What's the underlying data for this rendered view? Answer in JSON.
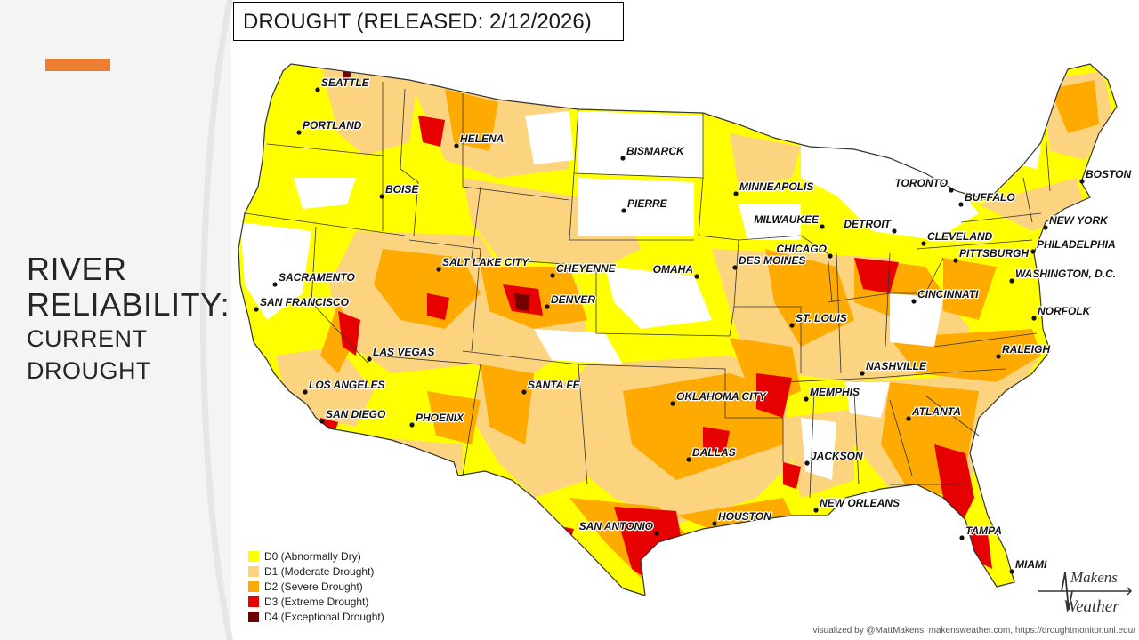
{
  "slide": {
    "title_line1": "RIVER",
    "title_line2": "RELIABILITY:",
    "subtitle_line1": "CURRENT",
    "subtitle_line2": "DROUGHT",
    "accent_color": "#ed7d31"
  },
  "map": {
    "title": "DROUGHT (RELEASED: 2/12/2026)",
    "cities": [
      {
        "name": "SEATTLE"
      },
      {
        "name": "PORTLAND"
      },
      {
        "name": "HELENA"
      },
      {
        "name": "BOISE"
      },
      {
        "name": "BISMARCK"
      },
      {
        "name": "PIERRE"
      },
      {
        "name": "MINNEAPOLIS"
      },
      {
        "name": "MILWAUKEE"
      },
      {
        "name": "DETROIT"
      },
      {
        "name": "TORONTO"
      },
      {
        "name": "BUFFALO"
      },
      {
        "name": "BOSTON"
      },
      {
        "name": "NEW YORK"
      },
      {
        "name": "PHILADELPHIA"
      },
      {
        "name": "WASHINGTON,  D.C."
      },
      {
        "name": "NORFOLK"
      },
      {
        "name": "CLEVELAND"
      },
      {
        "name": "PITTSBURGH"
      },
      {
        "name": "CHICAGO"
      },
      {
        "name": "CINCINNATI"
      },
      {
        "name": "DES MOINES"
      },
      {
        "name": "OMAHA"
      },
      {
        "name": "CHEYENNE"
      },
      {
        "name": "DENVER"
      },
      {
        "name": "SALT LAKE CITY"
      },
      {
        "name": "SACRAMENTO"
      },
      {
        "name": "SAN FRANCISCO"
      },
      {
        "name": "LAS VEGAS"
      },
      {
        "name": "LOS ANGELES"
      },
      {
        "name": "SAN DIEGO"
      },
      {
        "name": "PHOENIX"
      },
      {
        "name": "SANTA FE"
      },
      {
        "name": "OKLAHOMA CITY"
      },
      {
        "name": "ST. LOUIS"
      },
      {
        "name": "NASHVILLE"
      },
      {
        "name": "MEMPHIS"
      },
      {
        "name": "RALEIGH"
      },
      {
        "name": "ATLANTA"
      },
      {
        "name": "DALLAS"
      },
      {
        "name": "JACKSON"
      },
      {
        "name": "NEW ORLEANS"
      },
      {
        "name": "HOUSTON"
      },
      {
        "name": "SAN ANTONIO"
      },
      {
        "name": "TAMPA"
      },
      {
        "name": "MIAMI"
      }
    ]
  },
  "legend": [
    {
      "label": "D0 (Abnormally Dry)",
      "color": "#ffff00"
    },
    {
      "label": "D1 (Moderate Drought)",
      "color": "#fcd37f"
    },
    {
      "label": "D2 (Severe Drought)",
      "color": "#ffaa00"
    },
    {
      "label": "D3 (Extreme Drought)",
      "color": "#e60000"
    },
    {
      "label": "D4 (Exceptional Drought)",
      "color": "#730000"
    }
  ],
  "credit": "visualized by @MattMakens, makensweather.com, https://droughtmonitor.unl.edu/",
  "logo": {
    "top": "Makens",
    "bottom": "Weather"
  }
}
